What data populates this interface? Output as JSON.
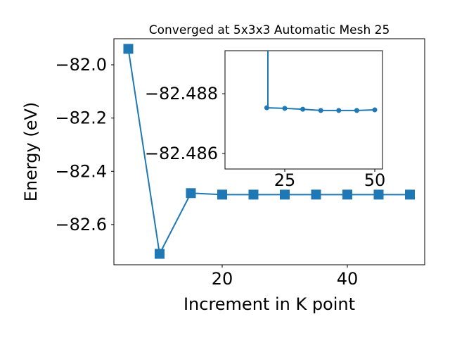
{
  "chart_data": [
    {
      "type": "line",
      "title": "Converged at 5x3x3 Automatic Mesh 25",
      "x_label": "Increment in K point",
      "y_label": "Energy (eV)",
      "x": [
        5,
        10,
        15,
        20,
        25,
        30,
        35,
        40,
        45,
        50
      ],
      "series": [
        {
          "color": "#1f77b4",
          "marker": "square",
          "values": [
            -81.94,
            -82.71,
            -82.482,
            -82.4875,
            -82.4875,
            -82.4875,
            -82.4874,
            -82.4874,
            -82.4875,
            -82.4875
          ]
        }
      ],
      "xlim": [
        2.7,
        52.36
      ],
      "ylim": [
        -82.751,
        -81.902
      ],
      "xticks": [
        20,
        40
      ],
      "yticks": [
        {
          "value": -82.0,
          "label": "−82.0"
        },
        {
          "value": -82.2,
          "label": "−82.2"
        },
        {
          "value": -82.4,
          "label": "−82.4"
        },
        {
          "value": -82.6,
          "label": "−82.6"
        }
      ]
    },
    {
      "type": "line",
      "inset": true,
      "x": [
        20,
        25,
        30,
        35,
        40,
        45,
        50
      ],
      "series": [
        {
          "color": "#1f77b4",
          "marker": "circle",
          "values": [
            -82.48753,
            -82.48751,
            -82.48748,
            -82.48744,
            -82.48744,
            -82.48744,
            -82.48746
          ]
        }
      ],
      "xlim": [
        8.4,
        52.15
      ],
      "ylim": [
        -82.48548,
        -82.48944
      ],
      "xticks": [
        25,
        50
      ],
      "yticks": [
        {
          "value": -82.488,
          "label": "−82.488"
        },
        {
          "value": -82.486,
          "label": "−82.486"
        }
      ]
    }
  ]
}
